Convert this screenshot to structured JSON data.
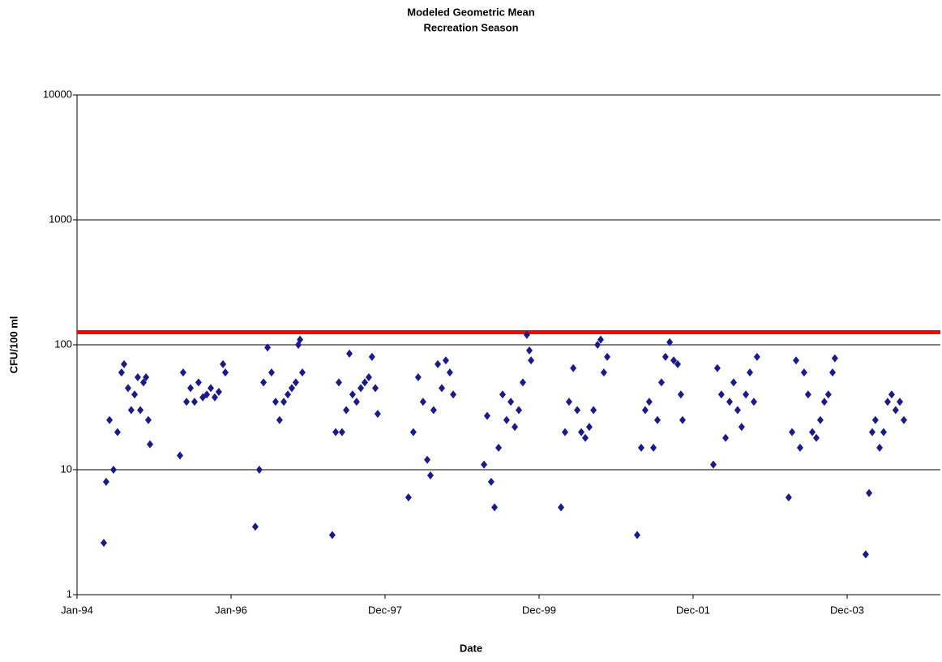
{
  "chart_data": {
    "type": "scatter",
    "title": "Modeled Geometric Mean",
    "subtitle": "Recreation Season",
    "x_label": "Date",
    "y_label": "CFU/100 ml",
    "log_scale": true,
    "grid": true,
    "color": "#1a1a8c",
    "reference_line": {
      "value": 126,
      "color": "#ff0000"
    },
    "xlim": [
      34335,
      38427
    ],
    "xticks": [
      {
        "value": 34335,
        "label": "Jan-94"
      },
      {
        "value": 35065,
        "label": "Jan-96"
      },
      {
        "value": 35795,
        "label": "Dec-97"
      },
      {
        "value": 36525,
        "label": "Dec-99"
      },
      {
        "value": 37255,
        "label": "Dec-01"
      },
      {
        "value": 37985,
        "label": "Dec-03"
      }
    ],
    "ylim": [
      1,
      10000
    ],
    "yticks": [
      1,
      10,
      100,
      1000,
      10000
    ],
    "x": [
      34462,
      34473,
      34489,
      34508,
      34527,
      34546,
      34558,
      34577,
      34592,
      34608,
      34623,
      34635,
      34650,
      34662,
      34673,
      34681,
      34823,
      34838,
      34854,
      34873,
      34892,
      34911,
      34931,
      34950,
      34969,
      34988,
      35007,
      35027,
      35038,
      35180,
      35199,
      35219,
      35238,
      35257,
      35276,
      35295,
      35315,
      35334,
      35353,
      35372,
      35384,
      35392,
      35403,
      35545,
      35561,
      35576,
      35591,
      35611,
      35626,
      35641,
      35660,
      35680,
      35699,
      35718,
      35733,
      35749,
      35760,
      35906,
      35929,
      35952,
      35975,
      35995,
      36010,
      36025,
      36045,
      36064,
      36083,
      36102,
      36118,
      36264,
      36279,
      36298,
      36314,
      36333,
      36352,
      36371,
      36391,
      36410,
      36429,
      36448,
      36467,
      36479,
      36487,
      36629,
      36648,
      36667,
      36687,
      36706,
      36725,
      36744,
      36763,
      36783,
      36802,
      36817,
      36832,
      36848,
      36990,
      37009,
      37028,
      37047,
      37067,
      37086,
      37105,
      37124,
      37144,
      37163,
      37182,
      37197,
      37205,
      37351,
      37370,
      37389,
      37409,
      37428,
      37447,
      37466,
      37485,
      37505,
      37524,
      37543,
      37558,
      37708,
      37724,
      37743,
      37762,
      37781,
      37800,
      37820,
      37839,
      37858,
      37877,
      37896,
      37916,
      37927,
      38073,
      38089,
      38104,
      38119,
      38139,
      38158,
      38177,
      38196,
      38215,
      38235,
      38254
    ],
    "values": [
      2.6,
      8,
      25,
      10,
      20,
      60,
      70,
      45,
      30,
      40,
      55,
      30,
      50,
      55,
      25,
      16,
      13,
      60,
      35,
      45,
      35,
      50,
      38,
      40,
      45,
      38,
      42,
      70,
      60,
      3.5,
      10,
      50,
      95,
      60,
      35,
      25,
      35,
      40,
      45,
      50,
      100,
      110,
      60,
      3,
      20,
      50,
      20,
      30,
      85,
      40,
      35,
      45,
      50,
      55,
      80,
      45,
      28,
      6,
      20,
      55,
      35,
      12,
      9,
      30,
      70,
      45,
      75,
      60,
      40,
      11,
      27,
      8,
      5,
      15,
      40,
      25,
      35,
      22,
      30,
      50,
      120,
      90,
      75,
      5,
      20,
      35,
      65,
      30,
      20,
      18,
      22,
      30,
      100,
      110,
      60,
      80,
      3,
      15,
      30,
      35,
      15,
      25,
      50,
      80,
      105,
      75,
      70,
      40,
      25,
      11,
      65,
      40,
      18,
      35,
      50,
      30,
      22,
      40,
      60,
      35,
      80,
      6,
      20,
      75,
      15,
      60,
      40,
      20,
      18,
      25,
      35,
      40,
      60,
      78,
      2.1,
      6.5,
      20,
      25,
      15,
      20,
      35,
      40,
      30,
      35,
      25
    ]
  }
}
